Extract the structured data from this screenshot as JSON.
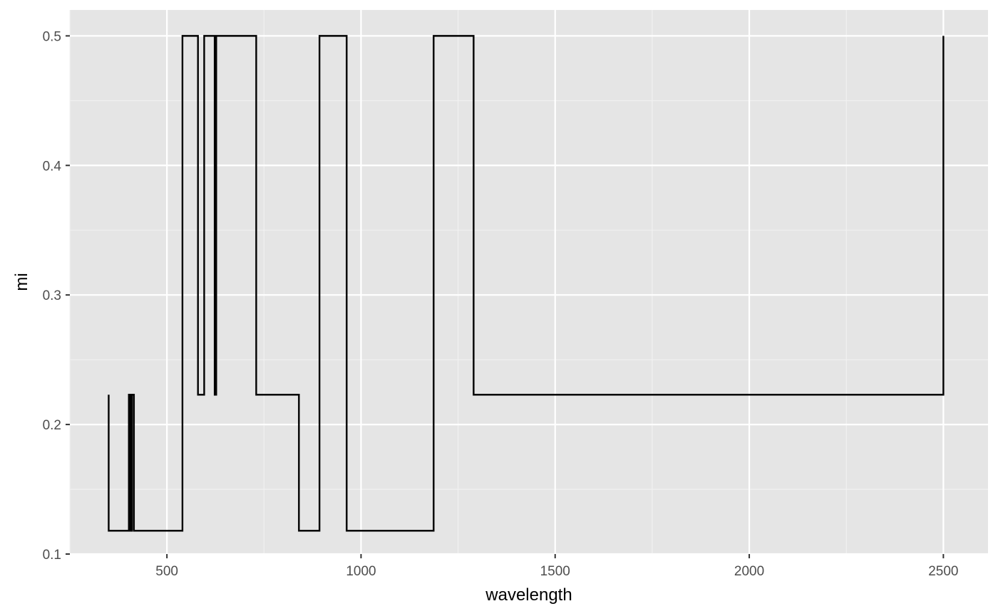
{
  "chart_data": {
    "type": "line",
    "title": "",
    "xlabel": "wavelength",
    "ylabel": "mi",
    "xlim": [
      250,
      2615
    ],
    "ylim": [
      0.1,
      0.52
    ],
    "x_ticks": [
      500,
      1000,
      1500,
      2000,
      2500
    ],
    "x_tick_labels": [
      "500",
      "1000",
      "1500",
      "2000",
      "2500"
    ],
    "y_ticks": [
      0.1,
      0.2,
      0.3,
      0.4,
      0.5
    ],
    "y_tick_labels": [
      "0.1",
      "0.2",
      "0.3",
      "0.4",
      "0.5"
    ],
    "grid": true,
    "legend": "none",
    "colors": {
      "panel_background": "#e5e5e5",
      "grid_major": "#ffffff",
      "grid_minor": "#f2f2f2",
      "line": "#000000",
      "tick_text": "#4d4d4d",
      "tick_mark": "#333333"
    },
    "series": [
      {
        "step": "hv",
        "x": [
          350,
          350,
          400,
          402,
          404,
          406,
          408,
          410,
          415,
          540,
          580,
          596,
          623,
          627,
          730,
          840,
          893,
          963,
          1187,
          1290,
          2500
        ],
        "y": [
          0.223,
          0.118,
          0.118,
          0.223,
          0.118,
          0.223,
          0.118,
          0.223,
          0.118,
          0.5,
          0.223,
          0.5,
          0.223,
          0.5,
          0.223,
          0.118,
          0.5,
          0.118,
          0.5,
          0.223,
          0.5
        ]
      }
    ]
  }
}
